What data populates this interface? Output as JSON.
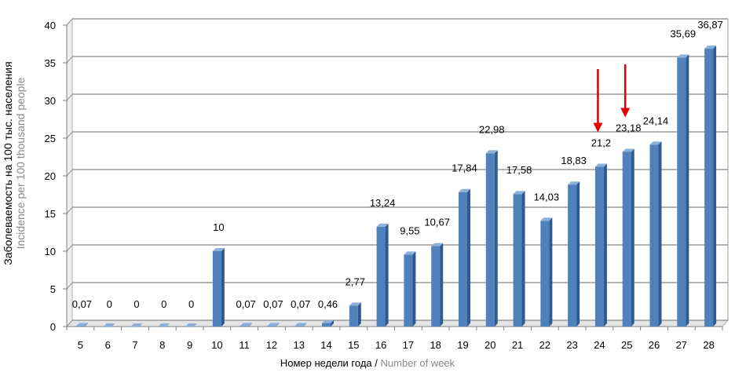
{
  "chart_data": {
    "type": "bar",
    "categories": [
      "5",
      "6",
      "7",
      "8",
      "9",
      "10",
      "11",
      "12",
      "13",
      "14",
      "15",
      "16",
      "17",
      "18",
      "19",
      "20",
      "21",
      "22",
      "23",
      "24",
      "25",
      "26",
      "27",
      "28"
    ],
    "values": [
      0.07,
      0,
      0,
      0,
      0,
      10,
      0.07,
      0.07,
      0.07,
      0.46,
      2.77,
      13.24,
      9.55,
      10.67,
      17.84,
      22.98,
      17.58,
      14.03,
      18.83,
      21.2,
      23.18,
      24.14,
      35.69,
      36.87
    ],
    "data_labels": [
      "0,07",
      "0",
      "0",
      "0",
      "0",
      "10",
      "0,07",
      "0,07",
      "0,07",
      "0,46",
      "2,77",
      "13,24",
      "9,55",
      "10,67",
      "17,84",
      "22,98",
      "17,58",
      "14,03",
      "18,83",
      "21,2",
      "23,18",
      "24,14",
      "35,69",
      "36,87"
    ],
    "xlabel": "Номер недели года /",
    "xlabel_en": "Number of week",
    "ylabel": "Заболеваемость на 100 тыс. населения",
    "ylabel_en": "Incidence per 100 thousand people",
    "ylim": [
      0,
      40
    ],
    "yticks": [
      0,
      5,
      10,
      15,
      20,
      25,
      30,
      35,
      40
    ],
    "grid": true,
    "bar_color": "#4f81bd",
    "arrows": [
      {
        "category": "24"
      },
      {
        "category": "25"
      }
    ],
    "arrow_color": "#e00000"
  }
}
